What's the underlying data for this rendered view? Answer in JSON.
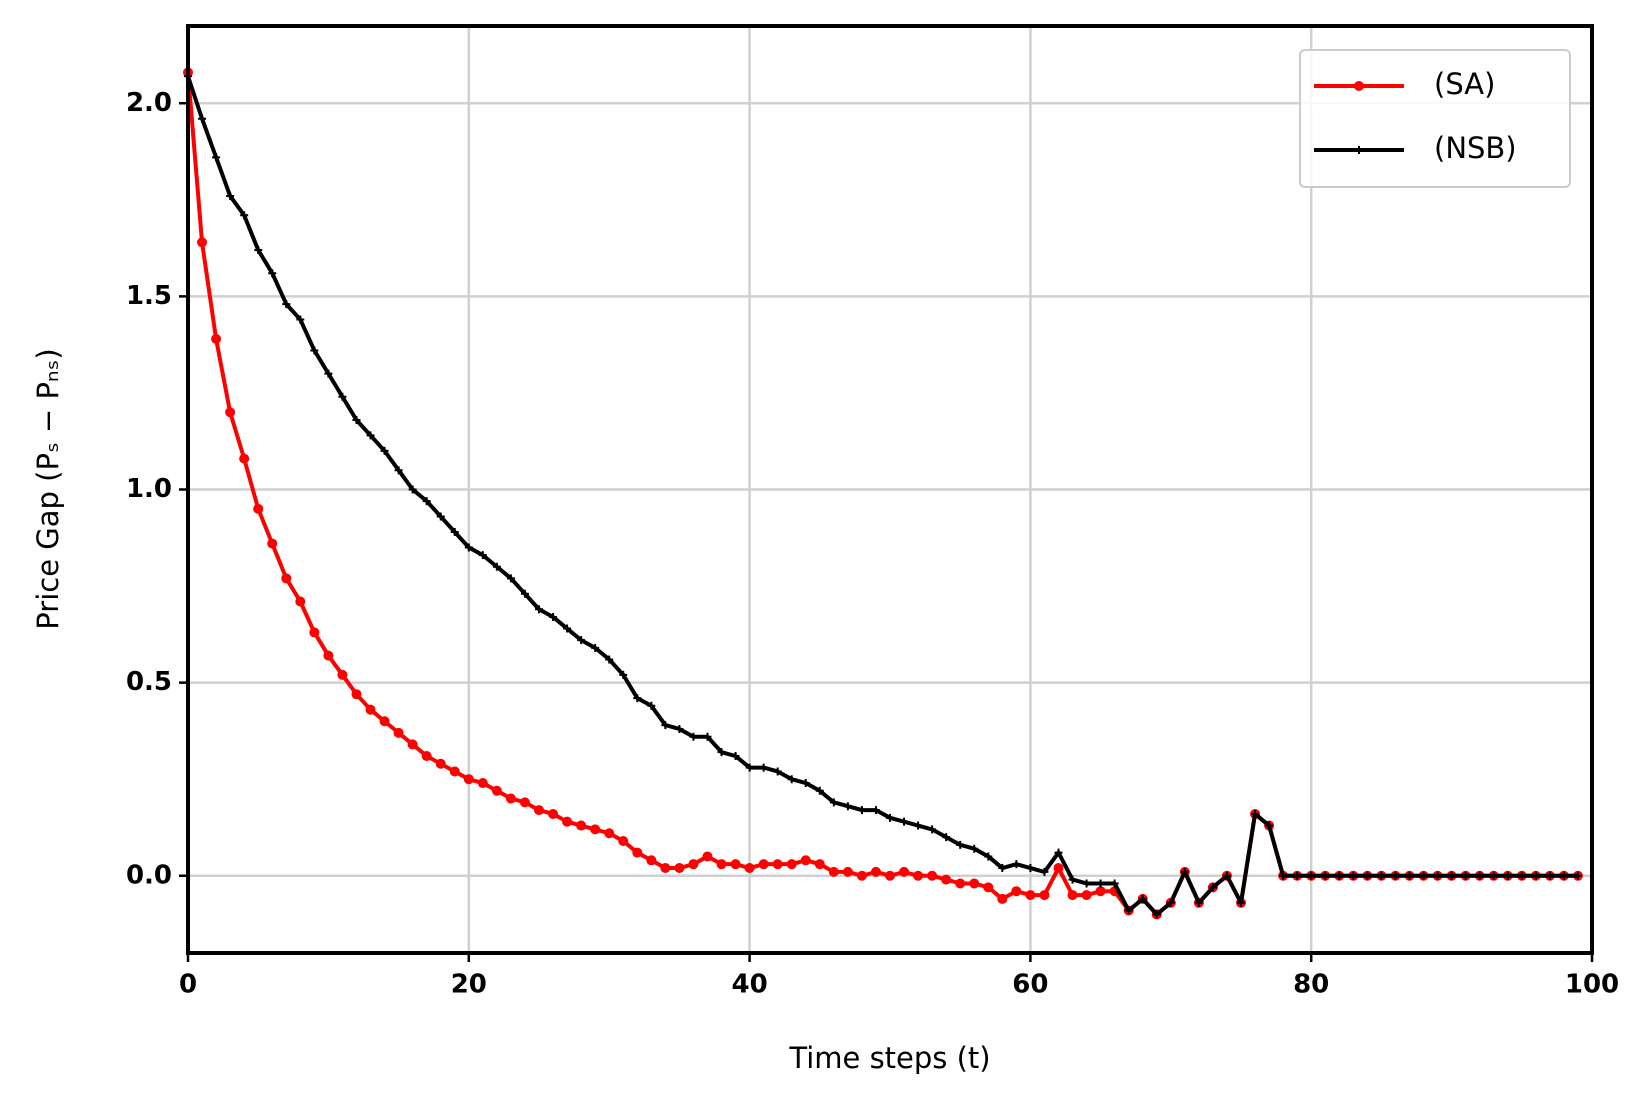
{
  "chart_data": {
    "type": "line",
    "xlabel": "Time steps (t)",
    "ylabel": "Price Gap (Pₛ − Pₙₛ)",
    "x": [
      0,
      1,
      2,
      3,
      4,
      5,
      6,
      7,
      8,
      9,
      10,
      11,
      12,
      13,
      14,
      15,
      16,
      17,
      18,
      19,
      20,
      21,
      22,
      23,
      24,
      25,
      26,
      27,
      28,
      29,
      30,
      31,
      32,
      33,
      34,
      35,
      36,
      37,
      38,
      39,
      40,
      41,
      42,
      43,
      44,
      45,
      46,
      47,
      48,
      49,
      50,
      51,
      52,
      53,
      54,
      55,
      56,
      57,
      58,
      59,
      60,
      61,
      62,
      63,
      64,
      65,
      66,
      67,
      68,
      69,
      70,
      71,
      72,
      73,
      74,
      75,
      76,
      77,
      78,
      79,
      80,
      81,
      82,
      83,
      84,
      85,
      86,
      87,
      88,
      89,
      90,
      91,
      92,
      93,
      94,
      95,
      96,
      97,
      98,
      99
    ],
    "series": [
      {
        "name": "(SA)",
        "color": "#ff0000",
        "marker": "circle",
        "values": [
          2.08,
          1.64,
          1.39,
          1.2,
          1.08,
          0.95,
          0.86,
          0.77,
          0.71,
          0.63,
          0.57,
          0.52,
          0.47,
          0.43,
          0.4,
          0.37,
          0.34,
          0.31,
          0.29,
          0.27,
          0.25,
          0.24,
          0.22,
          0.2,
          0.19,
          0.17,
          0.16,
          0.14,
          0.13,
          0.12,
          0.11,
          0.09,
          0.06,
          0.04,
          0.02,
          0.02,
          0.03,
          0.05,
          0.03,
          0.03,
          0.02,
          0.03,
          0.03,
          0.03,
          0.04,
          0.03,
          0.01,
          0.01,
          0,
          0.01,
          0,
          0.01,
          0,
          0,
          -0.01,
          -0.02,
          -0.02,
          -0.03,
          -0.06,
          -0.04,
          -0.05,
          -0.05,
          0.02,
          -0.05,
          -0.05,
          -0.04,
          -0.04,
          -0.09,
          -0.06,
          -0.1,
          -0.07,
          0.01,
          -0.07,
          -0.03,
          0,
          -0.07,
          0.16,
          0.13,
          0,
          0,
          0,
          0,
          0,
          0,
          0,
          0,
          0,
          0,
          0,
          0,
          0,
          0,
          0,
          0,
          0,
          0,
          0,
          0,
          0,
          0
        ]
      },
      {
        "name": "(NSB)",
        "color": "#000000",
        "marker": "plus",
        "values": [
          2.07,
          1.96,
          1.86,
          1.76,
          1.71,
          1.62,
          1.56,
          1.48,
          1.44,
          1.36,
          1.3,
          1.24,
          1.18,
          1.14,
          1.1,
          1.05,
          1,
          0.97,
          0.93,
          0.89,
          0.85,
          0.83,
          0.8,
          0.77,
          0.73,
          0.69,
          0.67,
          0.64,
          0.61,
          0.59,
          0.56,
          0.52,
          0.46,
          0.44,
          0.39,
          0.38,
          0.36,
          0.36,
          0.32,
          0.31,
          0.28,
          0.28,
          0.27,
          0.25,
          0.24,
          0.22,
          0.19,
          0.18,
          0.17,
          0.17,
          0.15,
          0.14,
          0.13,
          0.12,
          0.1,
          0.08,
          0.07,
          0.05,
          0.02,
          0.03,
          0.02,
          0.01,
          0.06,
          -0.01,
          -0.02,
          -0.02,
          -0.02,
          -0.09,
          -0.06,
          -0.1,
          -0.07,
          0.01,
          -0.07,
          -0.03,
          0,
          -0.07,
          0.16,
          0.13,
          0,
          0,
          0,
          0,
          0,
          0,
          0,
          0,
          0,
          0,
          0,
          0,
          0,
          0,
          0,
          0,
          0,
          0,
          0,
          0,
          0,
          0
        ]
      }
    ],
    "xlim": [
      0,
      100
    ],
    "xticks": [
      0,
      20,
      40,
      60,
      80,
      100
    ],
    "ylim": [
      -0.2,
      2.2
    ],
    "yticks": [
      {
        "value": 0,
        "label": "0.0"
      },
      0.5,
      {
        "value": 1,
        "label": "1.0"
      },
      1.5,
      {
        "value": 2,
        "label": "2.0"
      }
    ],
    "grid": true,
    "legend": "upper right"
  }
}
